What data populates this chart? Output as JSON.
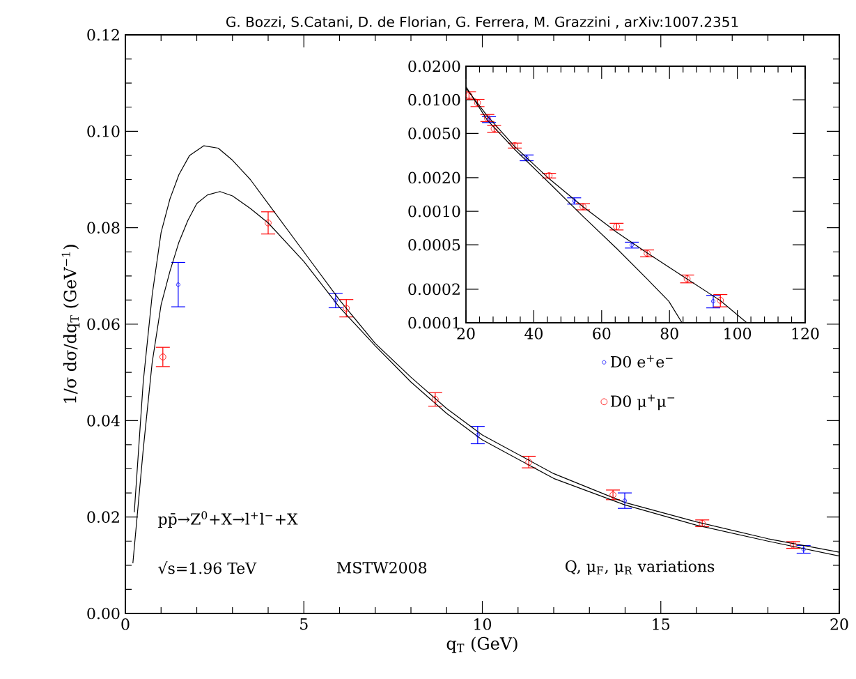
{
  "chart_data": [
    {
      "type": "scatter",
      "title": "G. Bozzi, S.Catani, D. de Florian, G. Ferrera, M. Grazzini , arXiv:1007.2351",
      "xlabel": "q$_{T}$ (GeV)",
      "ylabel": "1/σ dσ/dq$_{T}$ (GeV$^{−1}$)",
      "xlim": [
        0,
        20
      ],
      "xticks": [
        0,
        5,
        10,
        15,
        20
      ],
      "ylim": [
        0,
        0.12
      ],
      "yticks": [
        {
          "value": 0,
          "label": "0.00"
        },
        {
          "value": 0.02,
          "label": "0.02"
        },
        {
          "value": 0.04,
          "label": "0.04"
        },
        {
          "value": 0.06,
          "label": "0.06"
        },
        {
          "value": 0.08,
          "label": "0.08"
        },
        {
          "value": 0.1,
          "label": "0.10"
        },
        {
          "value": 0.12,
          "label": "0.12"
        }
      ],
      "legend": "right",
      "annotations": [
        "pp̄→Z$^{0}$+X→l$^{+}$l$^{−}$+X",
        "√s=1.96 TeV",
        "MSTW2008",
        "Q, μ$_{F}$, μ$_{R}$ variations"
      ],
      "series": [
        {
          "name": "D0 e$^{+}$e$^{−}$",
          "color": "#0000ff",
          "marker": "circle",
          "x": [
            1.48,
            5.89,
            9.87,
            13.99,
            19.0
          ],
          "values": [
            0.0682,
            0.0649,
            0.037,
            0.0234,
            0.0133
          ],
          "errors": [
            0.0046,
            0.0015,
            0.0018,
            0.0016,
            0.0008
          ]
        },
        {
          "name": "D0 μ$^{+}$μ$^{−}$",
          "color": "#ff0000",
          "marker": "circle",
          "x": [
            1.05,
            4.0,
            6.19,
            8.68,
            11.3,
            13.66,
            16.16,
            18.71
          ],
          "values": [
            0.0532,
            0.081,
            0.0633,
            0.0444,
            0.0314,
            0.0246,
            0.0187,
            0.0142
          ],
          "errors": [
            0.002,
            0.0023,
            0.0018,
            0.0014,
            0.0012,
            0.001,
            0.0007,
            0.0007
          ]
        },
        {
          "type": "line",
          "color": "#000000",
          "marker": "none",
          "line_style": "solid",
          "x": [
            0.25,
            0.5,
            0.75,
            1.0,
            1.25,
            1.5,
            1.8,
            2.2,
            2.6,
            3,
            3.5,
            4,
            5,
            6,
            7,
            8,
            9,
            10,
            12,
            14,
            16,
            18,
            20
          ],
          "values": [
            0.021,
            0.048,
            0.066,
            0.079,
            0.086,
            0.091,
            0.095,
            0.097,
            0.0965,
            0.094,
            0.09,
            0.085,
            0.075,
            0.065,
            0.056,
            0.049,
            0.0425,
            0.037,
            0.029,
            0.023,
            0.019,
            0.0155,
            0.0127
          ]
        },
        {
          "type": "line",
          "color": "#000000",
          "marker": "none",
          "line_style": "solid",
          "x": [
            0.21,
            0.5,
            0.75,
            1.0,
            1.25,
            1.5,
            1.75,
            2.0,
            2.3,
            2.65,
            3.0,
            3.5,
            4,
            5,
            6,
            7,
            8,
            9,
            10,
            12,
            14,
            16,
            18,
            20
          ],
          "values": [
            0.0104,
            0.034,
            0.052,
            0.064,
            0.071,
            0.077,
            0.0815,
            0.085,
            0.0868,
            0.0875,
            0.0866,
            0.084,
            0.081,
            0.073,
            0.0635,
            0.0555,
            0.048,
            0.0415,
            0.036,
            0.028,
            0.0225,
            0.0183,
            0.015,
            0.0119
          ]
        }
      ]
    },
    {
      "type": "scatter",
      "log": "y",
      "xlim": [
        20,
        120
      ],
      "xticks": [
        20,
        40,
        60,
        80,
        100,
        120
      ],
      "ylim": [
        0.0001,
        0.02
      ],
      "yticks": [
        {
          "value": 0.0001,
          "label": "0.0001"
        },
        {
          "value": 0.0002,
          "label": "0.0002"
        },
        {
          "value": 0.0005,
          "label": "0.0005"
        },
        {
          "value": 0.001,
          "label": "0.0010"
        },
        {
          "value": 0.002,
          "label": "0.0020"
        },
        {
          "value": 0.005,
          "label": "0.0050"
        },
        {
          "value": 0.01,
          "label": "0.0100"
        },
        {
          "value": 0.02,
          "label": "0.0200"
        }
      ],
      "series": [
        {
          "color": "#0000ff",
          "marker": "circle",
          "x": [
            26.8,
            37.9,
            51.9,
            68.9,
            92.9
          ],
          "values": [
            0.00665,
            0.00302,
            0.00124,
            0.000498,
            0.000156
          ],
          "errors": [
            0.0004,
            0.00018,
            8e-05,
            3e-05,
            2e-05
          ]
        },
        {
          "color": "#ff0000",
          "marker": "circle",
          "x": [
            20.9,
            23.4,
            26.3,
            28.3,
            34.4,
            44.5,
            54.5,
            64.4,
            73.4,
            85.2,
            95.0
          ],
          "values": [
            0.01096,
            0.00939,
            0.00688,
            0.0055,
            0.00389,
            0.00209,
            0.0011,
            0.00073,
            0.00042,
            0.000248,
            0.000159
          ],
          "errors": [
            0.0008,
            0.0007,
            0.0005,
            0.0004,
            0.0002,
            0.0001,
            7e-05,
            5e-05,
            3e-05,
            2e-05,
            2e-05
          ]
        },
        {
          "type": "line",
          "color": "#000000",
          "marker": "none",
          "line_style": "solid",
          "x": [
            20,
            26.3,
            34.4,
            44.5,
            54.5,
            64.4,
            73.4,
            85.2,
            95.0,
            102.8
          ],
          "values": [
            0.0127,
            0.00716,
            0.0038,
            0.00196,
            0.0011,
            0.000649,
            0.000424,
            0.000247,
            0.000158,
            0.0001
          ]
        },
        {
          "type": "line",
          "color": "#000000",
          "marker": "none",
          "line_style": "solid",
          "x": [
            20,
            26.3,
            34.4,
            44.5,
            54.5,
            64.4,
            73.4,
            79.8,
            83.7
          ],
          "values": [
            0.0131,
            0.00657,
            0.00358,
            0.0018,
            0.000901,
            0.000465,
            0.000247,
            0.000156,
            0.0001
          ]
        }
      ]
    }
  ]
}
